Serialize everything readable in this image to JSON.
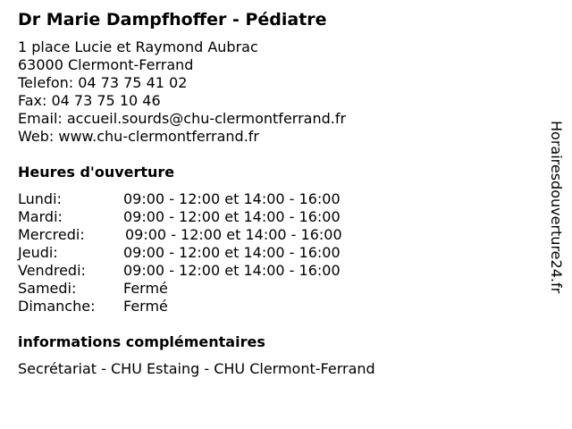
{
  "title": "Dr Marie Dampfhoffer - Pédiatre",
  "contact": [
    "1 place Lucie et Raymond Aubrac",
    "63000 Clermont-Ferrand",
    "Telefon: 04 73 75 41 02",
    "Fax: 04 73 75 10 46",
    "Email: accueil.sourds@chu-clermontferrand.fr",
    "Web: www.chu-clermontferrand.fr"
  ],
  "hours_heading": "Heures d'ouverture",
  "hours": [
    {
      "day": "Lundi:",
      "time": "09:00 - 12:00 et 14:00 - 16:00"
    },
    {
      "day": "Mardi:",
      "time": "09:00 - 12:00 et 14:00 - 16:00"
    },
    {
      "day": "Mercredi:",
      "time": "09:00 - 12:00 et 14:00 - 16:00"
    },
    {
      "day": "Jeudi:",
      "time": "09:00 - 12:00 et 14:00 - 16:00"
    },
    {
      "day": "Vendredi:",
      "time": "09:00 - 12:00 et 14:00 - 16:00"
    },
    {
      "day": "Samedi:",
      "time": "Fermé"
    },
    {
      "day": "Dimanche:",
      "time": "Fermé"
    }
  ],
  "info_heading": "informations complémentaires",
  "info_text": "Secrétariat - CHU Estaing - CHU Clermont-Ferrand",
  "side_watermark": "Horairesdouverture24.fr"
}
